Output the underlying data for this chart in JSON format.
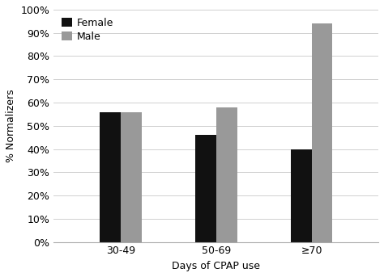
{
  "categories": [
    "30-49",
    "50-69",
    "≥70"
  ],
  "female_values": [
    0.56,
    0.46,
    0.4
  ],
  "male_values": [
    0.56,
    0.58,
    0.94
  ],
  "female_color": "#111111",
  "male_color": "#999999",
  "ylabel": "% Normalizers",
  "xlabel": "Days of CPAP use",
  "ylim": [
    0,
    1.0
  ],
  "yticks": [
    0,
    0.1,
    0.2,
    0.3,
    0.4,
    0.5,
    0.6,
    0.7,
    0.8,
    0.9,
    1.0
  ],
  "legend_labels": [
    "Female",
    "Male"
  ],
  "bar_width": 0.22,
  "figsize": [
    4.74,
    3.43
  ],
  "dpi": 100
}
